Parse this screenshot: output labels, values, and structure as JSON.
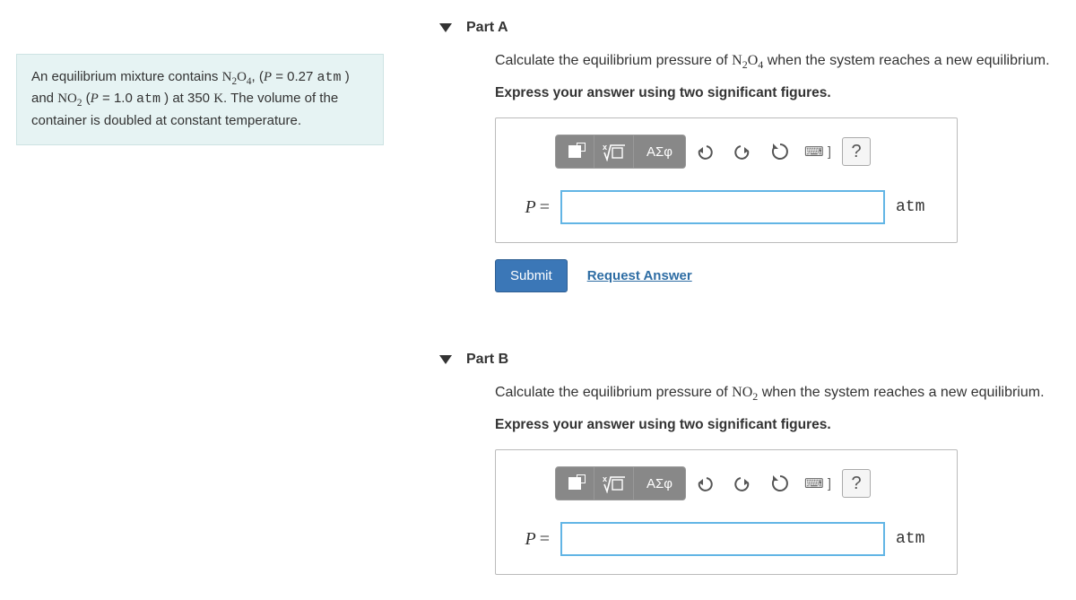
{
  "problem": {
    "html": "An equilibrium mixture contains <span class='chem'>N<sub>2</sub>O<sub>4</sub></span>, (<span class='it'>P</span> = 0.27 <span class='rm'>atm</span> ) and <span class='chem'>NO<sub>2</sub></span> (<span class='it'>P</span> = 1.0 <span class='rm'>atm</span> ) at 350 <span class='chem'>K</span>. The volume of the container is doubled at constant temperature."
  },
  "partA": {
    "title": "Part A",
    "prompt_html": "Calculate the equilibrium pressure of <span class='chem'>N<sub>2</sub>O<sub>4</sub></span> when the system reaches a new equilibrium.",
    "instruction": "Express your answer using two significant figures.",
    "lhs": "P",
    "eq": "=",
    "value": "",
    "unit": "atm",
    "submit": "Submit",
    "request": "Request Answer",
    "toolbar": {
      "greek": "ΑΣφ",
      "help": "?",
      "keyboard": "⌨ ]"
    }
  },
  "partB": {
    "title": "Part B",
    "prompt_html": "Calculate the equilibrium pressure of <span class='chem'>NO<sub>2</sub></span> when the system reaches a new equilibrium.",
    "instruction": "Express your answer using two significant figures.",
    "lhs": "P",
    "eq": "=",
    "value": "",
    "unit": "atm",
    "toolbar": {
      "greek": "ΑΣφ",
      "help": "?",
      "keyboard": "⌨ ]"
    }
  }
}
